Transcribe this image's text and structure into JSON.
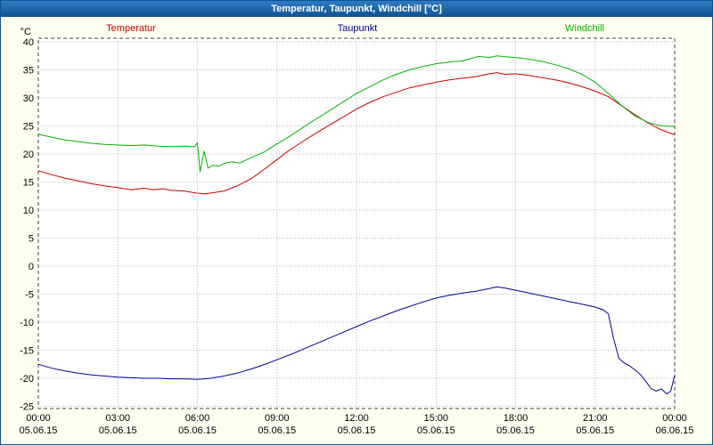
{
  "titlebar": {
    "title": "Temperatur, Taupunkt, Windchill [°C]"
  },
  "chart_data": {
    "type": "line",
    "title": "Temperatur, Taupunkt, Windchill [°C]",
    "y_unit": "°C",
    "x_range_hours": [
      0,
      24
    ],
    "y_range": [
      -25,
      40
    ],
    "grid": "dotted",
    "legend_position": "top",
    "y_ticks": [
      40,
      35,
      30,
      25,
      20,
      15,
      10,
      5,
      0,
      -5,
      -10,
      -15,
      -20,
      -25
    ],
    "x_ticks": [
      {
        "hour": 0,
        "label": "00:00",
        "date": "05.06.15"
      },
      {
        "hour": 3,
        "label": "03:00",
        "date": "05.06.15"
      },
      {
        "hour": 6,
        "label": "06:00",
        "date": "05.06.15"
      },
      {
        "hour": 9,
        "label": "09:00",
        "date": "05.06.15"
      },
      {
        "hour": 12,
        "label": "12:00",
        "date": "05.06.15"
      },
      {
        "hour": 15,
        "label": "15:00",
        "date": "05.06.15"
      },
      {
        "hour": 18,
        "label": "18:00",
        "date": "05.06.15"
      },
      {
        "hour": 21,
        "label": "21:00",
        "date": "05.06.15"
      },
      {
        "hour": 24,
        "label": "00:00",
        "date": "06.06.15"
      }
    ],
    "series": [
      {
        "name": "Temperatur",
        "color": "#cc0000",
        "points": [
          [
            0,
            17.0
          ],
          [
            0.5,
            16.3
          ],
          [
            1,
            15.7
          ],
          [
            1.5,
            15.2
          ],
          [
            2,
            14.7
          ],
          [
            2.5,
            14.3
          ],
          [
            3,
            14.0
          ],
          [
            3.5,
            13.6
          ],
          [
            4,
            13.9
          ],
          [
            4.3,
            13.6
          ],
          [
            4.7,
            13.8
          ],
          [
            5,
            13.5
          ],
          [
            5.5,
            13.4
          ],
          [
            6,
            13.0
          ],
          [
            6.3,
            12.9
          ],
          [
            6.6,
            13.1
          ],
          [
            7,
            13.4
          ],
          [
            7.5,
            14.3
          ],
          [
            8,
            15.5
          ],
          [
            8.5,
            17.2
          ],
          [
            9,
            19.0
          ],
          [
            9.5,
            20.8
          ],
          [
            10,
            22.3
          ],
          [
            10.5,
            23.8
          ],
          [
            11,
            25.2
          ],
          [
            11.5,
            26.6
          ],
          [
            12,
            28.0
          ],
          [
            12.5,
            29.2
          ],
          [
            13,
            30.2
          ],
          [
            13.5,
            31.0
          ],
          [
            14,
            31.8
          ],
          [
            14.5,
            32.3
          ],
          [
            15,
            32.8
          ],
          [
            15.5,
            33.2
          ],
          [
            16,
            33.5
          ],
          [
            16.5,
            33.8
          ],
          [
            17,
            34.3
          ],
          [
            17.3,
            34.5
          ],
          [
            17.6,
            34.2
          ],
          [
            18,
            34.3
          ],
          [
            18.5,
            34.0
          ],
          [
            19,
            33.6
          ],
          [
            19.5,
            33.2
          ],
          [
            20,
            32.7
          ],
          [
            20.5,
            32.0
          ],
          [
            21,
            31.2
          ],
          [
            21.5,
            30.2
          ],
          [
            22,
            28.6
          ],
          [
            22.5,
            27.0
          ],
          [
            23,
            25.5
          ],
          [
            23.5,
            24.3
          ],
          [
            24,
            23.4
          ]
        ]
      },
      {
        "name": "Taupunkt",
        "color": "#0000a0",
        "points": [
          [
            0,
            -17.5
          ],
          [
            0.5,
            -18.2
          ],
          [
            1,
            -18.7
          ],
          [
            1.5,
            -19.1
          ],
          [
            2,
            -19.4
          ],
          [
            2.5,
            -19.6
          ],
          [
            3,
            -19.8
          ],
          [
            3.5,
            -19.9
          ],
          [
            4,
            -20.0
          ],
          [
            4.5,
            -20.0
          ],
          [
            5,
            -20.1
          ],
          [
            5.5,
            -20.1
          ],
          [
            6,
            -20.2
          ],
          [
            6.5,
            -20.0
          ],
          [
            7,
            -19.6
          ],
          [
            7.5,
            -19.1
          ],
          [
            8,
            -18.4
          ],
          [
            8.5,
            -17.6
          ],
          [
            9,
            -16.7
          ],
          [
            9.5,
            -15.8
          ],
          [
            10,
            -14.8
          ],
          [
            10.5,
            -13.8
          ],
          [
            11,
            -12.8
          ],
          [
            11.5,
            -11.8
          ],
          [
            12,
            -10.8
          ],
          [
            12.5,
            -9.8
          ],
          [
            13,
            -8.9
          ],
          [
            13.5,
            -8.0
          ],
          [
            14,
            -7.2
          ],
          [
            14.5,
            -6.4
          ],
          [
            15,
            -5.7
          ],
          [
            15.5,
            -5.2
          ],
          [
            16,
            -4.8
          ],
          [
            16.5,
            -4.5
          ],
          [
            17,
            -4.0
          ],
          [
            17.3,
            -3.7
          ],
          [
            17.6,
            -3.9
          ],
          [
            18,
            -4.3
          ],
          [
            18.5,
            -4.8
          ],
          [
            19,
            -5.3
          ],
          [
            19.5,
            -5.8
          ],
          [
            20,
            -6.3
          ],
          [
            20.5,
            -6.8
          ],
          [
            21,
            -7.3
          ],
          [
            21.3,
            -7.8
          ],
          [
            21.5,
            -8.5
          ],
          [
            21.7,
            -13.0
          ],
          [
            21.9,
            -16.5
          ],
          [
            22.1,
            -17.3
          ],
          [
            22.3,
            -17.8
          ],
          [
            22.5,
            -18.5
          ],
          [
            22.7,
            -19.3
          ],
          [
            22.9,
            -20.5
          ],
          [
            23.1,
            -21.8
          ],
          [
            23.3,
            -22.3
          ],
          [
            23.5,
            -21.9
          ],
          [
            23.7,
            -22.8
          ],
          [
            23.85,
            -22.3
          ],
          [
            24,
            -19.5
          ]
        ]
      },
      {
        "name": "Windchill",
        "color": "#00b400",
        "points": [
          [
            0,
            23.5
          ],
          [
            0.5,
            23.0
          ],
          [
            1,
            22.5
          ],
          [
            1.5,
            22.2
          ],
          [
            2,
            21.9
          ],
          [
            2.5,
            21.7
          ],
          [
            3,
            21.6
          ],
          [
            3.5,
            21.5
          ],
          [
            4,
            21.6
          ],
          [
            4.5,
            21.4
          ],
          [
            5,
            21.3
          ],
          [
            5.5,
            21.4
          ],
          [
            5.9,
            21.3
          ],
          [
            6.0,
            22.0
          ],
          [
            6.1,
            16.8
          ],
          [
            6.25,
            20.5
          ],
          [
            6.4,
            17.5
          ],
          [
            6.6,
            18.0
          ],
          [
            6.8,
            17.8
          ],
          [
            7,
            18.3
          ],
          [
            7.3,
            18.6
          ],
          [
            7.6,
            18.4
          ],
          [
            8,
            19.3
          ],
          [
            8.5,
            20.3
          ],
          [
            9,
            21.8
          ],
          [
            9.5,
            23.2
          ],
          [
            10,
            24.8
          ],
          [
            10.5,
            26.3
          ],
          [
            11,
            27.8
          ],
          [
            11.5,
            29.3
          ],
          [
            12,
            30.8
          ],
          [
            12.5,
            32.0
          ],
          [
            13,
            33.2
          ],
          [
            13.5,
            34.2
          ],
          [
            14,
            35.0
          ],
          [
            14.5,
            35.6
          ],
          [
            15,
            36.1
          ],
          [
            15.5,
            36.4
          ],
          [
            16,
            36.6
          ],
          [
            16.3,
            37.0
          ],
          [
            16.6,
            37.4
          ],
          [
            17,
            37.2
          ],
          [
            17.3,
            37.5
          ],
          [
            17.7,
            37.3
          ],
          [
            18,
            37.2
          ],
          [
            18.5,
            36.9
          ],
          [
            19,
            36.5
          ],
          [
            19.5,
            35.9
          ],
          [
            20,
            35.2
          ],
          [
            20.5,
            34.2
          ],
          [
            21,
            32.8
          ],
          [
            21.5,
            30.8
          ],
          [
            22,
            28.6
          ],
          [
            22.5,
            26.8
          ],
          [
            23,
            25.6
          ],
          [
            23.5,
            25.0
          ],
          [
            24,
            24.9
          ]
        ]
      }
    ],
    "colors": {
      "grid": "#b4b4b4",
      "plot_border": "#404040",
      "plot_background": "#ffffff",
      "page_background": "#fffff0",
      "titlebar": "#0f5296"
    }
  }
}
